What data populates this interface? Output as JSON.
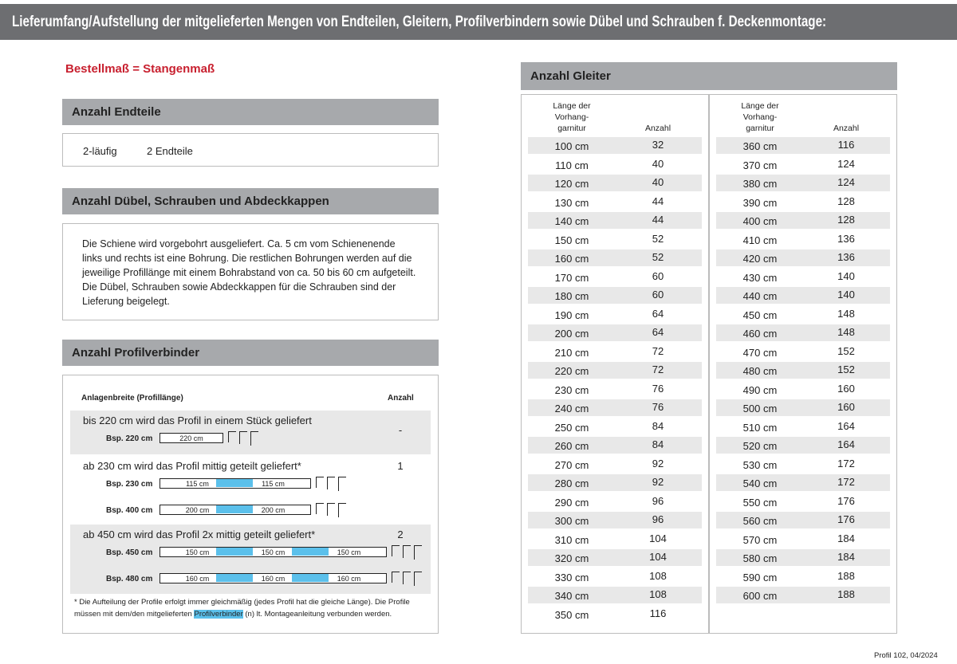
{
  "header": {
    "title": "Lieferumfang/Aufstellung der mitgelieferten Mengen von Endteilen, Gleitern, Profilverbindern sowie Dübel und Schrauben f. Deckenmontage:"
  },
  "note": "Bestellmaß = Stangenmaß",
  "endteile": {
    "title": "Anzahl Endteile",
    "row": [
      "2-läufig",
      "2 Endteile"
    ]
  },
  "duebel": {
    "title": "Anzahl Dübel, Schrauben und Abdeckkappen",
    "text": "Die Schiene wird vorgebohrt ausgeliefert. Ca. 5 cm vom Schienenende links und rechts ist eine Bohrung. Die restlichen Bohrungen werden auf die jeweilige Profillänge mit einem Bohrabstand von ca. 50 bis 60 cm aufgeteilt. Die Dübel, Schrauben sowie Abdeckkappen für die Schrauben sind der Lieferung bei­gelegt."
  },
  "profilverbinder": {
    "title": "Anzahl Profilverbinder",
    "header": [
      "Anlagenbreite (Profillänge)",
      "Anzahl"
    ],
    "groups": [
      {
        "text": "bis 220 cm wird das Profil in einem Stück geliefert",
        "count": "-",
        "examples": [
          {
            "label": "Bsp. 220 cm",
            "segments": [
              "220 cm"
            ]
          }
        ]
      },
      {
        "text": "ab 230 cm wird das Profil mittig geteilt geliefert*",
        "count": "1",
        "examples": [
          {
            "label": "Bsp. 230 cm",
            "segments": [
              "115 cm",
              "115 cm"
            ]
          },
          {
            "label": "Bsp. 400 cm",
            "segments": [
              "200 cm",
              "200 cm"
            ]
          }
        ]
      },
      {
        "text": "ab 450 cm wird das Profil 2x mittig geteilt geliefert*",
        "count": "2",
        "examples": [
          {
            "label": "Bsp. 450 cm",
            "segments": [
              "150 cm",
              "150 cm",
              "150 cm"
            ]
          },
          {
            "label": "Bsp. 480 cm",
            "segments": [
              "160 cm",
              "160 cm",
              "160 cm"
            ]
          }
        ]
      }
    ],
    "footnote": {
      "line1": "* Die Aufteilung der Profile erfolgt immer gleichmäßig (jedes Profil hat die gleiche Länge). Die Profile",
      "line2_before": "müssen mit dem/den mitgelieferten ",
      "highlight": "Profilverbinder",
      "line2_after": " (n) lt. Montageanleitung verbunden werden."
    }
  },
  "gleiter": {
    "title": "Anzahl Gleiter",
    "header_length": [
      "Länge der",
      "Vorhang-",
      "garnitur"
    ],
    "header_count": "Anzahl",
    "left": [
      [
        "100 cm",
        32
      ],
      [
        "110 cm",
        40
      ],
      [
        "120 cm",
        40
      ],
      [
        "130 cm",
        44
      ],
      [
        "140 cm",
        44
      ],
      [
        "150 cm",
        52
      ],
      [
        "160 cm",
        52
      ],
      [
        "170 cm",
        60
      ],
      [
        "180 cm",
        60
      ],
      [
        "190 cm",
        64
      ],
      [
        "200 cm",
        64
      ],
      [
        "210 cm",
        72
      ],
      [
        "220 cm",
        72
      ],
      [
        "230 cm",
        76
      ],
      [
        "240 cm",
        76
      ],
      [
        "250 cm",
        84
      ],
      [
        "260 cm",
        84
      ],
      [
        "270 cm",
        92
      ],
      [
        "280 cm",
        92
      ],
      [
        "290 cm",
        96
      ],
      [
        "300 cm",
        96
      ],
      [
        "310 cm",
        104
      ],
      [
        "320 cm",
        104
      ],
      [
        "330 cm",
        108
      ],
      [
        "340 cm",
        108
      ],
      [
        "350 cm",
        116
      ]
    ],
    "right": [
      [
        "360 cm",
        116
      ],
      [
        "370 cm",
        124
      ],
      [
        "380 cm",
        124
      ],
      [
        "390 cm",
        128
      ],
      [
        "400 cm",
        128
      ],
      [
        "410 cm",
        136
      ],
      [
        "420 cm",
        136
      ],
      [
        "430 cm",
        140
      ],
      [
        "440 cm",
        140
      ],
      [
        "450 cm",
        148
      ],
      [
        "460 cm",
        148
      ],
      [
        "470 cm",
        152
      ],
      [
        "480 cm",
        152
      ],
      [
        "490 cm",
        160
      ],
      [
        "500 cm",
        160
      ],
      [
        "510 cm",
        164
      ],
      [
        "520 cm",
        164
      ],
      [
        "530 cm",
        172
      ],
      [
        "540 cm",
        172
      ],
      [
        "550 cm",
        176
      ],
      [
        "560 cm",
        176
      ],
      [
        "570 cm",
        184
      ],
      [
        "580 cm",
        184
      ],
      [
        "590 cm",
        188
      ],
      [
        "600 cm",
        188
      ]
    ]
  },
  "footer": "Profil 102, 04/2024"
}
